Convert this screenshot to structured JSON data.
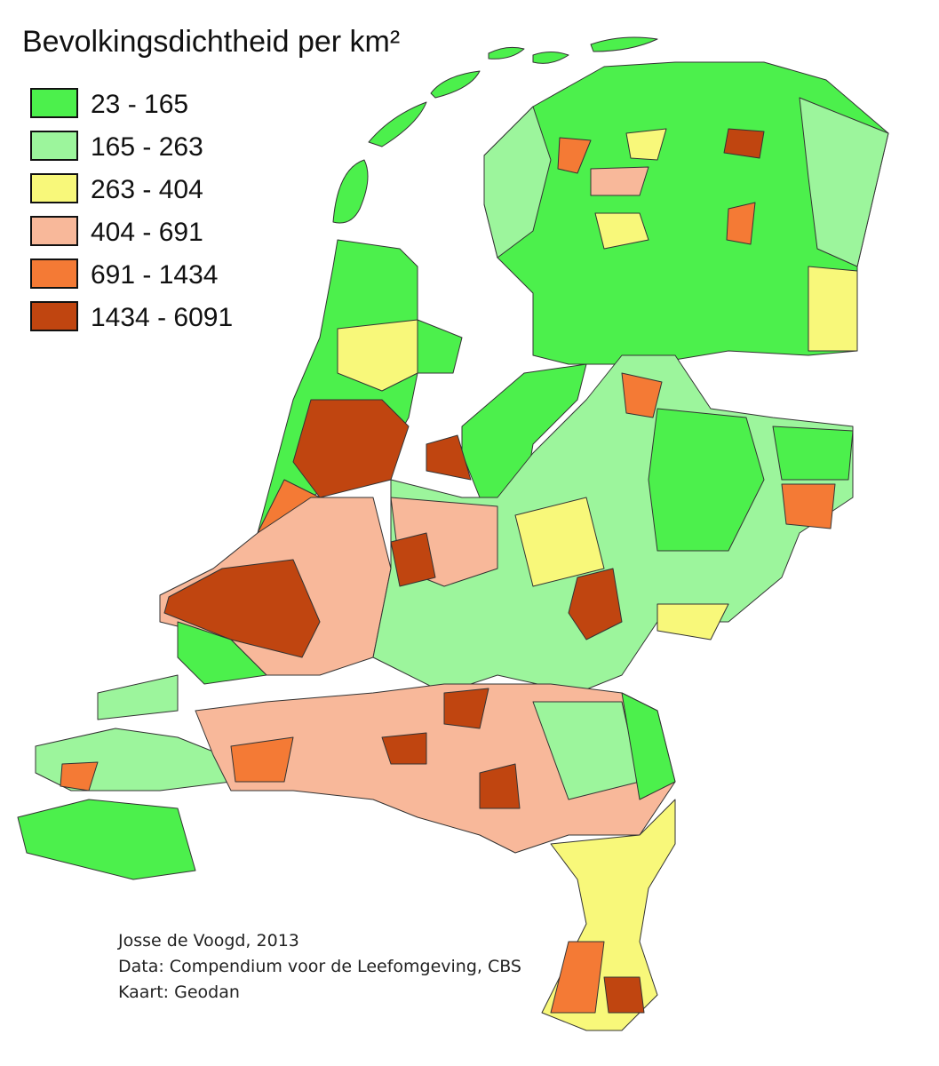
{
  "title": "Bevolkingsdichtheid per km²",
  "legend": {
    "items": [
      {
        "label": "23 - 165",
        "color": "#4cf04c"
      },
      {
        "label": "165 - 263",
        "color": "#9cf59c"
      },
      {
        "label": "263 - 404",
        "color": "#f8f87a"
      },
      {
        "label": "404 - 691",
        "color": "#f8b89a"
      },
      {
        "label": "691 - 1434",
        "color": "#f47a35"
      },
      {
        "label": "1434 - 6091",
        "color": "#c04510"
      }
    ]
  },
  "credits": [
    "Josse de Voogd, 2013",
    "Data: Compendium voor de Leefomgeving, CBS",
    "Kaart: Geodan"
  ]
}
